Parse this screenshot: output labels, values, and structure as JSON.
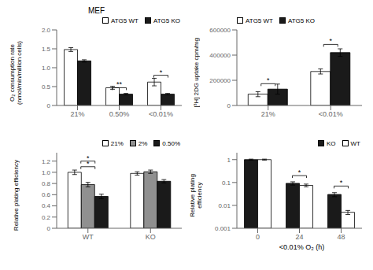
{
  "chart_data": [
    {
      "type": "bar",
      "title": "MEF",
      "categories": [
        "21%",
        "0.50%",
        "<0.01%"
      ],
      "series": [
        {
          "name": "ATG5 WT",
          "color": "#ffffff",
          "values": [
            1.48,
            0.47,
            0.62
          ],
          "errors": [
            0.05,
            0.04,
            0.1
          ]
        },
        {
          "name": "ATG5 KO",
          "color": "#1a1a1a",
          "values": [
            1.18,
            0.3,
            0.3
          ],
          "errors": [
            0.03,
            0.02,
            0.02
          ]
        }
      ],
      "ylabel": "O₂ consumption rate\n(nmol/min/million cells)",
      "ylim": [
        0,
        2.0
      ],
      "yticks": [
        0,
        0.5,
        {
          "value": 1.0,
          "label": "1.0"
        },
        1.5,
        {
          "value": 2.0,
          "label": "2.0"
        }
      ],
      "legend": "upper right",
      "annotations": [
        {
          "text": "**",
          "x": "0.50%",
          "y": 0.47
        },
        {
          "text": "*",
          "x": "<0.01%",
          "y": 0.8
        }
      ]
    },
    {
      "type": "bar",
      "categories": [
        "21%",
        "<0.01%"
      ],
      "series": [
        {
          "name": "ATG5 WT",
          "color": "#ffffff",
          "values": [
            90000,
            270000
          ],
          "errors": [
            20000,
            20000
          ]
        },
        {
          "name": "ATG5 KO",
          "color": "#1a1a1a",
          "values": [
            130000,
            420000
          ],
          "errors": [
            40000,
            30000
          ]
        }
      ],
      "ylabel": "[³H] 2DG uptake cpm/mg",
      "ylim": [
        0,
        600000
      ],
      "yticks": [
        0,
        200000,
        400000,
        600000
      ],
      "legend": "upper left",
      "annotations": [
        {
          "text": "*",
          "x": "21%",
          "y": 173000
        },
        {
          "text": "*",
          "x": "<0.01%",
          "y": 485000
        }
      ]
    },
    {
      "type": "bar",
      "categories": [
        "WT",
        "KO"
      ],
      "series": [
        {
          "name": "21%",
          "color": "#ffffff",
          "values": [
            1.0,
            0.98
          ],
          "errors": [
            0.04,
            0.03
          ]
        },
        {
          "name": "2%",
          "color": "#909090",
          "values": [
            0.78,
            1.01
          ],
          "errors": [
            0.04,
            0.03
          ]
        },
        {
          "name": "0.50%",
          "color": "#1a1a1a",
          "values": [
            0.57,
            0.84
          ],
          "errors": [
            0.04,
            0.03
          ]
        }
      ],
      "ylabel": "Relative plating efficiency",
      "ylim": [
        0,
        1.35
      ],
      "yticks": [
        0,
        0.2,
        0.4,
        0.6,
        0.8,
        {
          "value": 1.0,
          "label": "1.0"
        },
        1.2
      ],
      "legend": "upper right",
      "annotations": [
        {
          "text": "*",
          "x": "WT",
          "y": 1.1
        },
        {
          "text": "*",
          "x": "WT",
          "y": 1.2
        }
      ]
    },
    {
      "type": "bar",
      "categories": [
        "0",
        "24",
        "48"
      ],
      "series": [
        {
          "name": "KO",
          "color": "#1a1a1a",
          "values": [
            1.0,
            0.092,
            0.03
          ],
          "errors": [
            0.05,
            0.015,
            0.006
          ]
        },
        {
          "name": "WT",
          "color": "#ffffff",
          "values": [
            1.0,
            0.075,
            0.005
          ],
          "errors": [
            0.05,
            0.01,
            0.001
          ]
        }
      ],
      "ylabel": "Relative plating\nefficiency",
      "xlabel": "<0.01% O₂ (h)",
      "log": "y",
      "ylim": [
        0.001,
        2.0
      ],
      "yticks": [
        0.001,
        0.01,
        0.1,
        1
      ],
      "legend": "upper right",
      "annotations": [
        {
          "text": "*",
          "x": "24",
          "y": 0.2
        },
        {
          "text": "*",
          "x": "48",
          "y": 0.07
        }
      ]
    }
  ]
}
